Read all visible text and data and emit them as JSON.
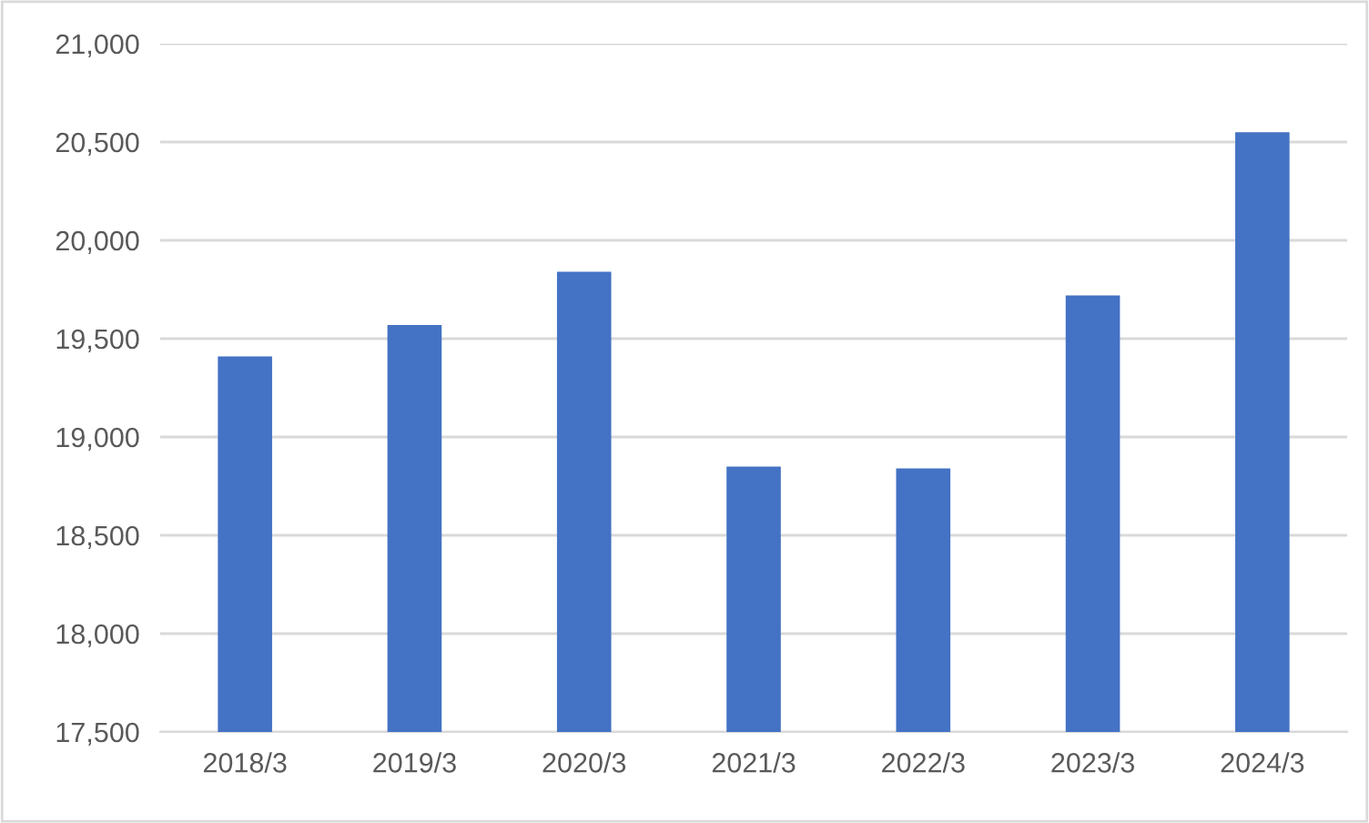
{
  "chart_data": {
    "type": "bar",
    "categories": [
      "2018/3",
      "2019/3",
      "2020/3",
      "2021/3",
      "2022/3",
      "2023/3",
      "2024/3"
    ],
    "values": [
      19410,
      19570,
      19840,
      18850,
      18840,
      19720,
      20550
    ],
    "color": "#4472c4",
    "ylim": [
      17500,
      21000
    ],
    "yticks": [
      {
        "value": 17500,
        "label": "17,500"
      },
      {
        "value": 18000,
        "label": "18,000"
      },
      {
        "value": 18500,
        "label": "18,500"
      },
      {
        "value": 19000,
        "label": "19,000"
      },
      {
        "value": 19500,
        "label": "19,500"
      },
      {
        "value": 20000,
        "label": "20,000"
      },
      {
        "value": 20500,
        "label": "20,500"
      },
      {
        "value": 21000,
        "label": "21,000"
      }
    ],
    "grid": "y"
  }
}
